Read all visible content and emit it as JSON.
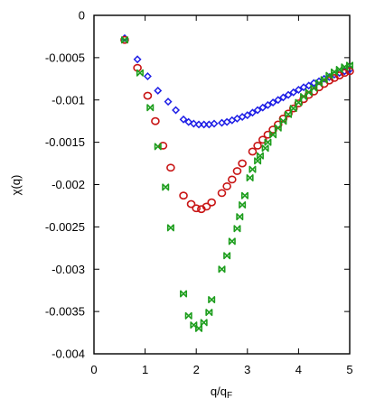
{
  "chart_data": {
    "type": "scatter",
    "title": "",
    "xlabel": "q/q",
    "xlabel_subscript": "F",
    "ylabel": "χ(q)",
    "xlim": [
      0,
      5
    ],
    "ylim": [
      -0.004,
      0
    ],
    "x_ticks": [
      "0",
      "1",
      "2",
      "3",
      "4",
      "5"
    ],
    "y_ticks": [
      "0",
      "-0.0005",
      "-0.001",
      "-0.0015",
      "-0.002",
      "-0.0025",
      "-0.003",
      "-0.0035",
      "-0.004"
    ],
    "grid": false,
    "legend": "none",
    "series": [
      {
        "marker": "diamond",
        "color": "#1f1fe6",
        "points": [
          [
            0.6,
            -0.00027
          ],
          [
            0.85,
            -0.00052
          ],
          [
            1.05,
            -0.00072
          ],
          [
            1.25,
            -0.00089
          ],
          [
            1.45,
            -0.00102
          ],
          [
            1.6,
            -0.00112
          ],
          [
            1.75,
            -0.00123
          ],
          [
            1.85,
            -0.00126
          ],
          [
            1.95,
            -0.00128
          ],
          [
            2.05,
            -0.00129
          ],
          [
            2.15,
            -0.00129
          ],
          [
            2.25,
            -0.00129
          ],
          [
            2.35,
            -0.00128
          ],
          [
            2.5,
            -0.00127
          ],
          [
            2.6,
            -0.00126
          ],
          [
            2.7,
            -0.00124
          ],
          [
            2.8,
            -0.00122
          ],
          [
            2.9,
            -0.0012
          ],
          [
            3.0,
            -0.00118
          ],
          [
            3.1,
            -0.00115
          ],
          [
            3.2,
            -0.00112
          ],
          [
            3.3,
            -0.00109
          ],
          [
            3.4,
            -0.00106
          ],
          [
            3.5,
            -0.00103
          ],
          [
            3.6,
            -0.001
          ],
          [
            3.7,
            -0.00097
          ],
          [
            3.8,
            -0.00094
          ],
          [
            3.9,
            -0.00091
          ],
          [
            4.0,
            -0.00088
          ],
          [
            4.1,
            -0.00085
          ],
          [
            4.2,
            -0.00083
          ],
          [
            4.3,
            -0.0008
          ],
          [
            4.4,
            -0.00078
          ],
          [
            4.5,
            -0.00075
          ],
          [
            4.6,
            -0.00073
          ],
          [
            4.7,
            -0.0007
          ],
          [
            4.8,
            -0.00068
          ],
          [
            4.9,
            -0.00066
          ],
          [
            5.0,
            -0.00064
          ]
        ]
      },
      {
        "marker": "circle",
        "color": "#c81414",
        "points": [
          [
            0.6,
            -0.00029
          ],
          [
            0.85,
            -0.00062
          ],
          [
            1.05,
            -0.00095
          ],
          [
            1.2,
            -0.00125
          ],
          [
            1.35,
            -0.00154
          ],
          [
            1.5,
            -0.0018
          ],
          [
            1.75,
            -0.00213
          ],
          [
            1.9,
            -0.00223
          ],
          [
            2.0,
            -0.00228
          ],
          [
            2.1,
            -0.00229
          ],
          [
            2.2,
            -0.00226
          ],
          [
            2.3,
            -0.00221
          ],
          [
            2.5,
            -0.0021
          ],
          [
            2.6,
            -0.00202
          ],
          [
            2.7,
            -0.00194
          ],
          [
            2.8,
            -0.00184
          ],
          [
            2.9,
            -0.00175
          ],
          [
            3.1,
            -0.00161
          ],
          [
            3.2,
            -0.00154
          ],
          [
            3.3,
            -0.00147
          ],
          [
            3.4,
            -0.00141
          ],
          [
            3.5,
            -0.00135
          ],
          [
            3.6,
            -0.00129
          ],
          [
            3.7,
            -0.00122
          ],
          [
            3.8,
            -0.00116
          ],
          [
            3.9,
            -0.0011
          ],
          [
            4.0,
            -0.00104
          ],
          [
            4.1,
            -0.00099
          ],
          [
            4.2,
            -0.00094
          ],
          [
            4.3,
            -0.0009
          ],
          [
            4.4,
            -0.00085
          ],
          [
            4.5,
            -0.00081
          ],
          [
            4.6,
            -0.00077
          ],
          [
            4.7,
            -0.00074
          ],
          [
            4.8,
            -0.00071
          ],
          [
            4.9,
            -0.00068
          ],
          [
            5.0,
            -0.00066
          ]
        ]
      },
      {
        "marker": "bowtie",
        "color": "#1e9e1e",
        "points": [
          [
            0.6,
            -0.00029
          ],
          [
            0.9,
            -0.00068
          ],
          [
            1.1,
            -0.00109
          ],
          [
            1.25,
            -0.00155
          ],
          [
            1.4,
            -0.00203
          ],
          [
            1.5,
            -0.00251
          ],
          [
            1.75,
            -0.00329
          ],
          [
            1.85,
            -0.00355
          ],
          [
            1.95,
            -0.00366
          ],
          [
            2.05,
            -0.0037
          ],
          [
            2.15,
            -0.00363
          ],
          [
            2.25,
            -0.00351
          ],
          [
            2.3,
            -0.00336
          ],
          [
            2.5,
            -0.003
          ],
          [
            2.6,
            -0.00284
          ],
          [
            2.7,
            -0.00267
          ],
          [
            2.8,
            -0.00252
          ],
          [
            2.85,
            -0.00238
          ],
          [
            2.9,
            -0.00224
          ],
          [
            2.95,
            -0.00213
          ],
          [
            3.05,
            -0.00192
          ],
          [
            3.1,
            -0.00182
          ],
          [
            3.2,
            -0.00172
          ],
          [
            3.25,
            -0.00166
          ],
          [
            3.35,
            -0.00157
          ],
          [
            3.4,
            -0.0015
          ],
          [
            3.5,
            -0.00141
          ],
          [
            3.6,
            -0.00133
          ],
          [
            3.7,
            -0.00125
          ],
          [
            3.8,
            -0.00117
          ],
          [
            3.9,
            -0.0011
          ],
          [
            4.0,
            -0.00103
          ],
          [
            4.1,
            -0.00096
          ],
          [
            4.2,
            -0.00091
          ],
          [
            4.3,
            -0.00086
          ],
          [
            4.4,
            -0.0008
          ],
          [
            4.5,
            -0.00076
          ],
          [
            4.6,
            -0.00071
          ],
          [
            4.7,
            -0.00067
          ],
          [
            4.8,
            -0.00064
          ],
          [
            4.9,
            -0.00061
          ],
          [
            5.0,
            -0.00059
          ]
        ]
      }
    ]
  }
}
